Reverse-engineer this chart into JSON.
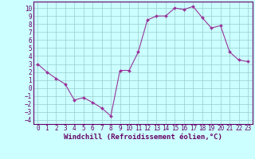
{
  "x": [
    0,
    1,
    2,
    3,
    4,
    5,
    6,
    7,
    8,
    9,
    10,
    11,
    12,
    13,
    14,
    15,
    16,
    17,
    18,
    19,
    20,
    21,
    22,
    23
  ],
  "y": [
    3.0,
    2.0,
    1.2,
    0.5,
    -1.5,
    -1.2,
    -1.8,
    -2.5,
    -3.5,
    2.2,
    2.2,
    4.5,
    8.5,
    9.0,
    9.0,
    10.0,
    9.8,
    10.2,
    8.8,
    7.5,
    7.8,
    4.5,
    3.5,
    3.3
  ],
  "line_color": "#993399",
  "marker": "D",
  "marker_size": 2,
  "bg_color": "#ccffff",
  "grid_color": "#99cccc",
  "xlabel": "Windchill (Refroidissement éolien,°C)",
  "xlabel_fontsize": 6.5,
  "xlim": [
    -0.5,
    23.5
  ],
  "ylim": [
    -4.5,
    10.8
  ],
  "yticks": [
    -4,
    -3,
    -2,
    -1,
    0,
    1,
    2,
    3,
    4,
    5,
    6,
    7,
    8,
    9,
    10
  ],
  "xticks": [
    0,
    1,
    2,
    3,
    4,
    5,
    6,
    7,
    8,
    9,
    10,
    11,
    12,
    13,
    14,
    15,
    16,
    17,
    18,
    19,
    20,
    21,
    22,
    23
  ],
  "tick_fontsize": 5.5,
  "frame_color": "#660066",
  "spine_color": "#660066",
  "axis_bg": "#ccffff"
}
